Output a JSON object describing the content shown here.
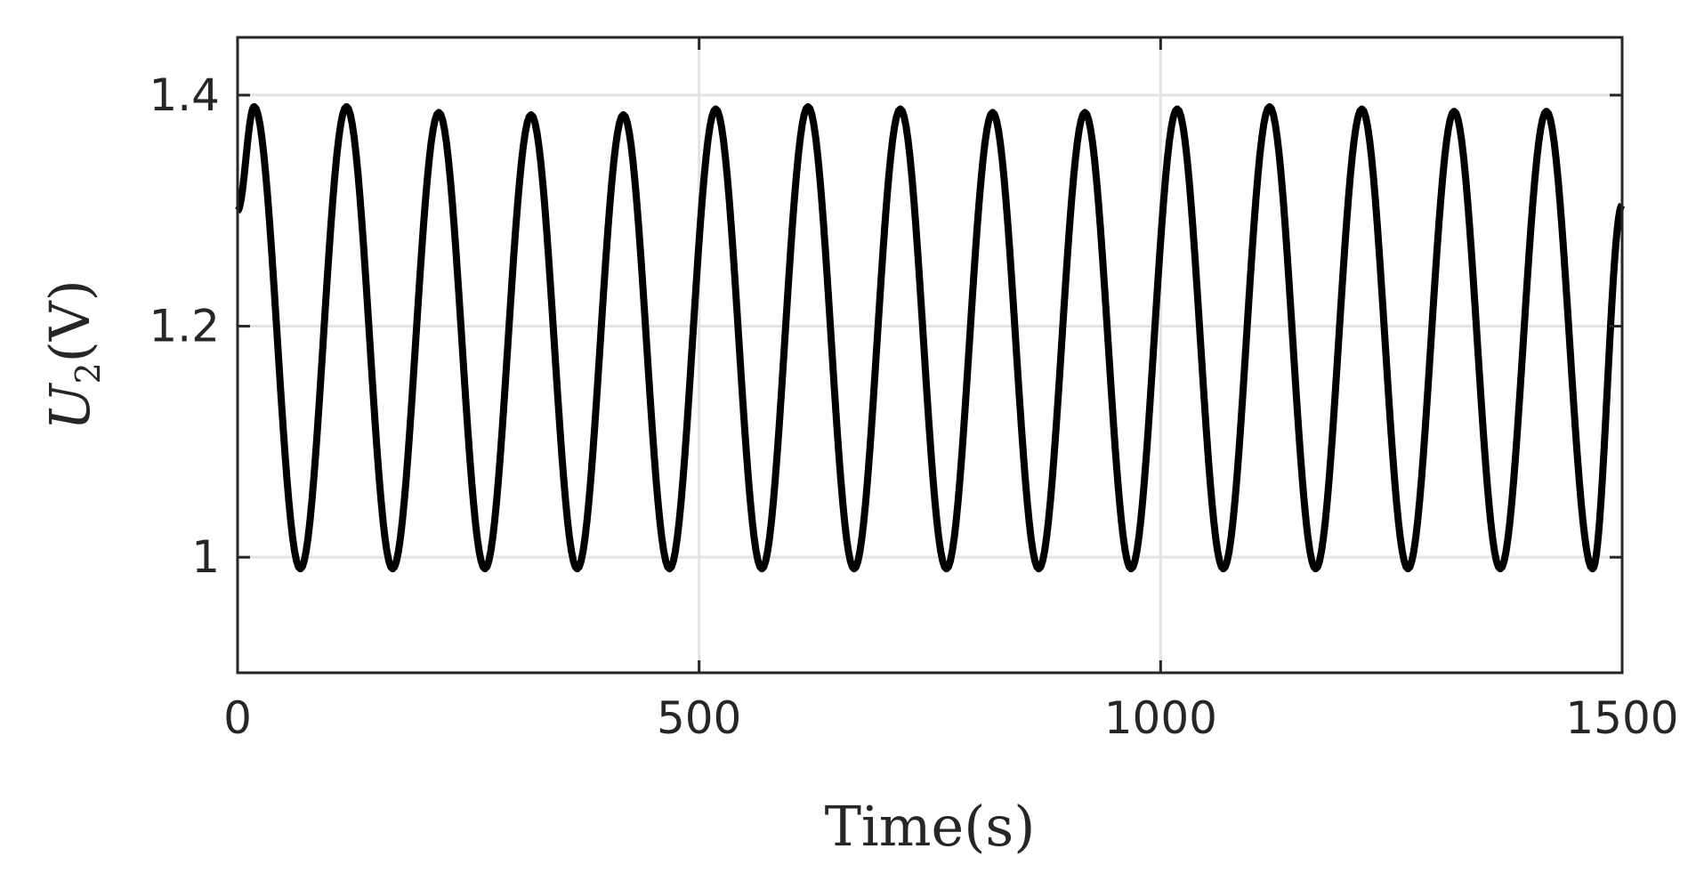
{
  "chart_data": {
    "type": "line",
    "title": "",
    "xlabel": "Time(s)",
    "ylabel": {
      "base": "U",
      "subscript": "2",
      "unit": "(V)"
    },
    "xlim": [
      0,
      1500
    ],
    "ylim": [
      0.9,
      1.45
    ],
    "xticks": [
      0,
      500,
      1000,
      1500
    ],
    "xtick_labels": [
      "0",
      "500",
      "1000",
      "1500"
    ],
    "yticks": [
      1.0,
      1.2,
      1.4
    ],
    "ytick_labels": [
      "1",
      "1.2",
      "1.4"
    ],
    "grid": true,
    "series": [
      {
        "color": "#000000",
        "x": [
          0,
          18,
          68,
          118,
          168,
          218,
          268,
          318,
          368,
          418,
          468,
          518,
          568,
          618,
          668,
          718,
          768,
          818,
          868,
          918,
          968,
          1018,
          1068,
          1118,
          1168,
          1218,
          1268,
          1318,
          1368,
          1418,
          1468,
          1500
        ],
        "y": [
          1.3,
          1.39,
          0.99,
          1.39,
          0.99,
          1.385,
          0.99,
          1.383,
          0.99,
          1.383,
          0.99,
          1.388,
          0.99,
          1.39,
          0.99,
          1.388,
          0.99,
          1.385,
          0.99,
          1.385,
          0.99,
          1.388,
          0.99,
          1.39,
          0.99,
          1.388,
          0.99,
          1.386,
          0.99,
          1.386,
          0.99,
          1.305
        ]
      }
    ]
  }
}
